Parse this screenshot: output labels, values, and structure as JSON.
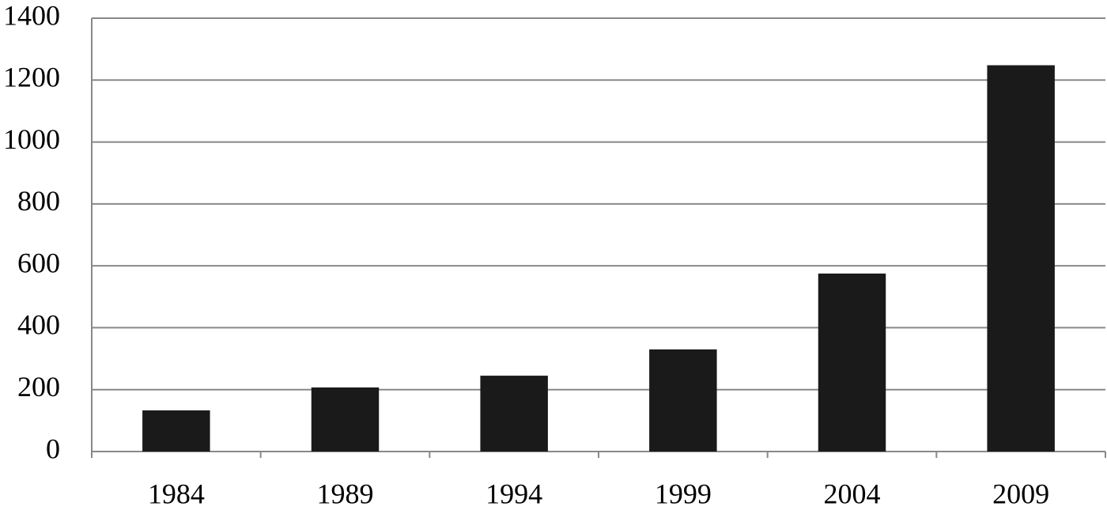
{
  "chart_data": {
    "type": "bar",
    "categories": [
      "1984",
      "1989",
      "1994",
      "1999",
      "2004",
      "2009"
    ],
    "values": [
      133,
      207,
      245,
      330,
      575,
      1248
    ],
    "color": "#1a1a1a",
    "ylim": [
      0,
      1400
    ],
    "yticks": [
      0,
      200,
      400,
      600,
      800,
      1000,
      1200,
      1400
    ],
    "grid": true
  }
}
